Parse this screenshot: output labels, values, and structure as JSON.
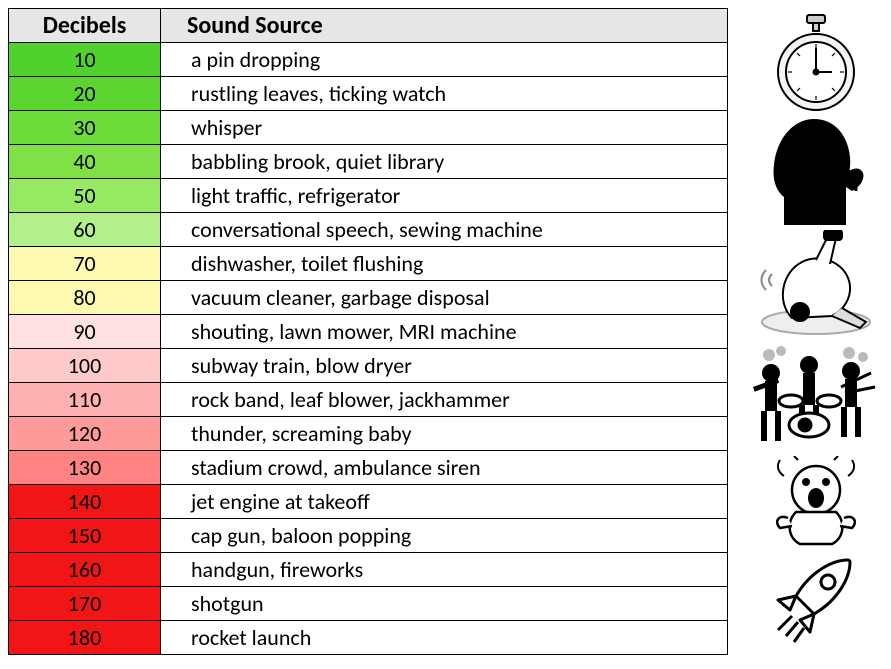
{
  "header": {
    "decibels": "Decibels",
    "source": "Sound Source"
  },
  "header_bg": "#e6e6e6",
  "border_color": "#000000",
  "rows": [
    {
      "db": "10",
      "src": "a pin dropping",
      "color": "#4fd22e"
    },
    {
      "db": "20",
      "src": "rustling leaves, ticking watch",
      "color": "#5bd631"
    },
    {
      "db": "30",
      "src": "whisper",
      "color": "#6edc3a"
    },
    {
      "db": "40",
      "src": "babbling brook, quiet library",
      "color": "#7ee247"
    },
    {
      "db": "50",
      "src": "light traffic, refrigerator",
      "color": "#96e962"
    },
    {
      "db": "60",
      "src": "conversational speech, sewing machine",
      "color": "#b2f089"
    },
    {
      "db": "70",
      "src": "dishwasher, toilet flushing",
      "color": "#fdfab0"
    },
    {
      "db": "80",
      "src": "vacuum cleaner, garbage disposal",
      "color": "#fdfab0"
    },
    {
      "db": "90",
      "src": "shouting, lawn mower, MRI machine",
      "color": "#ffe1e1"
    },
    {
      "db": "100",
      "src": "subway train, blow dryer",
      "color": "#ffcaca"
    },
    {
      "db": "110",
      "src": "rock band, leaf blower, jackhammer",
      "color": "#ffb0b0"
    },
    {
      "db": "120",
      "src": "thunder, screaming baby",
      "color": "#ff9a9a"
    },
    {
      "db": "130",
      "src": "stadium crowd, ambulance siren",
      "color": "#ff8383"
    },
    {
      "db": "140",
      "src": "jet engine at takeoff",
      "color": "#f11515"
    },
    {
      "db": "150",
      "src": "cap gun, baloon popping",
      "color": "#f11515"
    },
    {
      "db": "160",
      "src": "handgun, fireworks",
      "color": "#f11515"
    },
    {
      "db": "170",
      "src": "shotgun",
      "color": "#f11515"
    },
    {
      "db": "180",
      "src": "rocket launch",
      "color": "#f11515"
    }
  ],
  "icons": [
    {
      "name": "stopwatch-icon"
    },
    {
      "name": "shush-silhouette-icon"
    },
    {
      "name": "vacuum-icon"
    },
    {
      "name": "rock-band-icon"
    },
    {
      "name": "crying-baby-icon"
    },
    {
      "name": "rocket-icon"
    }
  ]
}
